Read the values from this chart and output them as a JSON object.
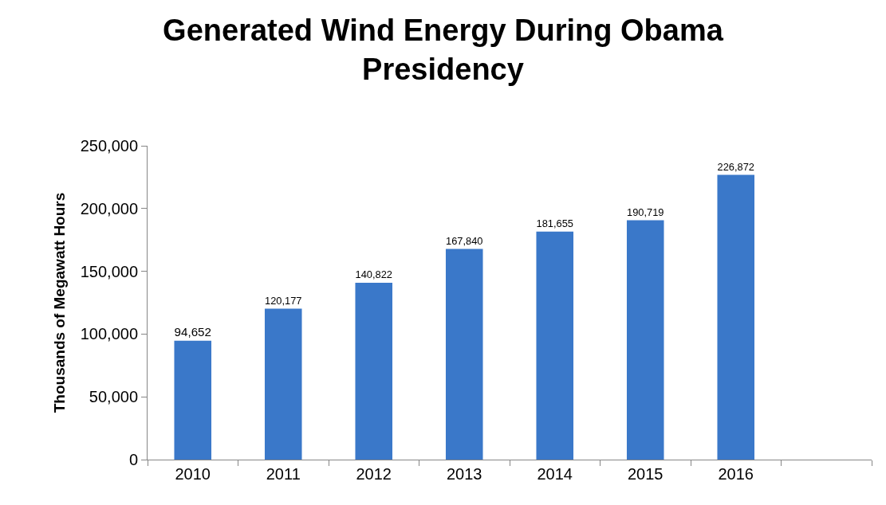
{
  "chart_data": {
    "type": "bar",
    "title": "Generated Wind Energy During Obama Presidency",
    "ylabel": "Thousands of Megawatt Hours",
    "categories": [
      "2010",
      "2011",
      "2012",
      "2013",
      "2014",
      "2015",
      "2016",
      null
    ],
    "values": [
      94652,
      120177,
      140822,
      167840,
      181655,
      190719,
      226872,
      null
    ],
    "color": "#3a78c9",
    "ylim": [
      0,
      250000
    ],
    "yticks": [
      {
        "value": 0,
        "label": "0"
      },
      {
        "value": 50000,
        "label": "50,000"
      },
      {
        "value": 100000,
        "label": "100,000"
      },
      {
        "value": 150000,
        "label": "150,000"
      },
      {
        "value": 200000,
        "label": "200,000"
      },
      {
        "value": 250000,
        "label": "250,000"
      }
    ],
    "value_labels": [
      "94,652",
      "120,177",
      "140,822",
      "167,840",
      "181,655",
      "190,719",
      "226,872",
      null
    ],
    "legend": false
  }
}
